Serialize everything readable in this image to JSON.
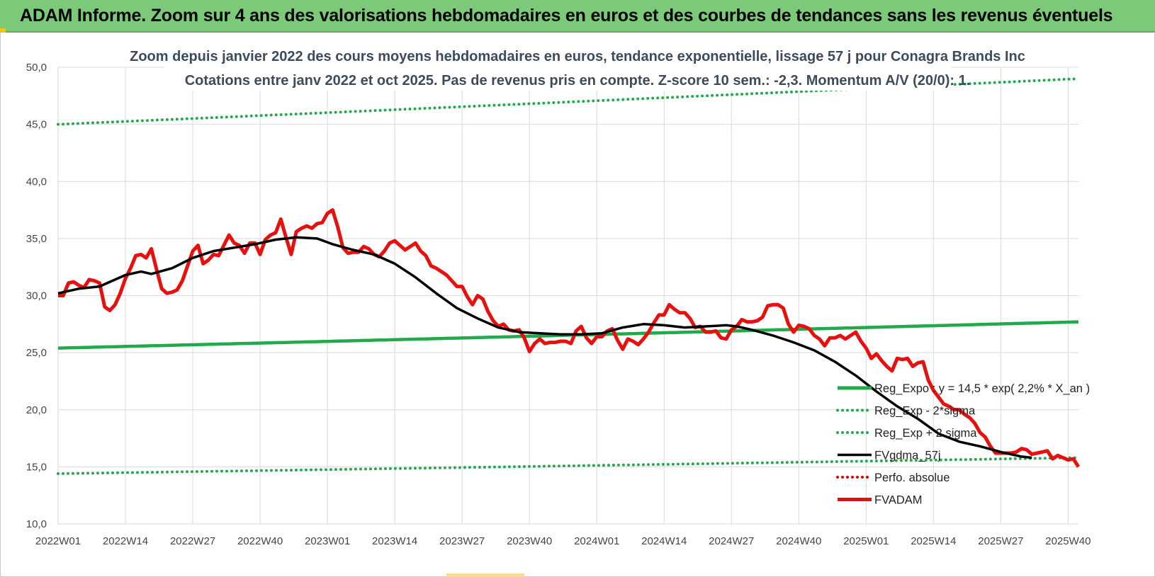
{
  "page": {
    "banner_title": "ADAM Informe. Zoom sur 4 ans des valorisations hebdomadaires en euros et des courbes de tendances sans les revenus éventuels"
  },
  "colors": {
    "banner": "#7dc97a",
    "reg_expo": "#22a94b",
    "sigma": "#22a94b",
    "fvgdma": "#000000",
    "perfo": "#e00000",
    "fvadam": "#e8100e",
    "grid": "#d9d9d9"
  },
  "chart_data": {
    "type": "line",
    "title_line1": "Zoom depuis janvier 2022 des cours moyens hebdomadaires en euros, tendance exponentielle, lissage 57 j pour Conagra Brands Inc",
    "title_line2": "Cotations entre janv 2022 et oct 2025. Pas de revenus pris en compte. Z-score 10 sem.: -2,3. Momentum A/V (20/0): 1.",
    "ylim": [
      10,
      50
    ],
    "y_ticks": [
      "10,0",
      "15,0",
      "20,0",
      "25,0",
      "30,0",
      "35,0",
      "40,0",
      "45,0",
      "50,0"
    ],
    "x_ticks": [
      "2022W01",
      "2022W14",
      "2022W27",
      "2022W40",
      "2023W01",
      "2023W14",
      "2023W27",
      "2023W40",
      "2024W01",
      "2024W14",
      "2024W27",
      "2024W40",
      "2025W01",
      "2025W14",
      "2025W27",
      "2025W40"
    ],
    "grid": true,
    "legend_position": "bottom-right",
    "legend": [
      {
        "label": "Reg_Expo : y = 14,5 * exp( 2,2% * X_an )",
        "style": "solid",
        "color": "#22a94b"
      },
      {
        "label": "Reg_Exp - 2*sigma",
        "style": "dotted",
        "color": "#22a94b"
      },
      {
        "label": "Reg_Exp + 2 sigma",
        "style": "dotted",
        "color": "#22a94b"
      },
      {
        "label": "FVgdma_57j",
        "style": "solid",
        "color": "#000000"
      },
      {
        "label": "Perfo. absolue",
        "style": "dotted",
        "color": "#e00000"
      },
      {
        "label": "FVADAM",
        "style": "solid",
        "color": "#e8100e"
      }
    ],
    "series": [
      {
        "name": "Reg_Expo : y = 14,5 * exp( 2,2% * X_an )",
        "start": 25.4,
        "end": 27.7
      },
      {
        "name": "Reg_Exp - 2*sigma",
        "start": 14.4,
        "end": 15.8
      },
      {
        "name": "Reg_Exp + 2 sigma",
        "start": 45.0,
        "end": 49.0
      },
      {
        "name": "FVgdma_57j",
        "points": [
          [
            0,
            30.2
          ],
          [
            4,
            30.6
          ],
          [
            8,
            30.8
          ],
          [
            10,
            31.2
          ],
          [
            13,
            31.8
          ],
          [
            16,
            32.1
          ],
          [
            18,
            31.9
          ],
          [
            22,
            32.4
          ],
          [
            26,
            33.3
          ],
          [
            30,
            33.9
          ],
          [
            34,
            34.2
          ],
          [
            38,
            34.5
          ],
          [
            42,
            34.9
          ],
          [
            46,
            35.1
          ],
          [
            50,
            35.0
          ],
          [
            53,
            34.5
          ],
          [
            57,
            34.0
          ],
          [
            61,
            33.6
          ],
          [
            65,
            32.8
          ],
          [
            69,
            31.6
          ],
          [
            73,
            30.2
          ],
          [
            77,
            28.9
          ],
          [
            81,
            28.0
          ],
          [
            85,
            27.2
          ],
          [
            89,
            26.8
          ],
          [
            93,
            26.7
          ],
          [
            97,
            26.6
          ],
          [
            101,
            26.6
          ],
          [
            105,
            26.7
          ],
          [
            109,
            27.2
          ],
          [
            113,
            27.5
          ],
          [
            117,
            27.4
          ],
          [
            121,
            27.2
          ],
          [
            125,
            27.3
          ],
          [
            129,
            27.4
          ],
          [
            131,
            27.3
          ],
          [
            134,
            27.0
          ],
          [
            138,
            26.5
          ],
          [
            142,
            25.9
          ],
          [
            146,
            25.2
          ],
          [
            150,
            24.2
          ],
          [
            154,
            23.0
          ],
          [
            158,
            21.6
          ],
          [
            162,
            20.3
          ],
          [
            166,
            19.2
          ],
          [
            170,
            17.9
          ],
          [
            174,
            17.2
          ],
          [
            178,
            16.8
          ],
          [
            182,
            16.3
          ],
          [
            186,
            15.9
          ],
          [
            188,
            15.8
          ]
        ]
      },
      {
        "name": "FVADAM",
        "points": [
          [
            0,
            30.0
          ],
          [
            1,
            30.0
          ],
          [
            2,
            31.1
          ],
          [
            3,
            31.2
          ],
          [
            4,
            30.9
          ],
          [
            5,
            30.7
          ],
          [
            6,
            31.4
          ],
          [
            7,
            31.3
          ],
          [
            8,
            31.1
          ],
          [
            9,
            29.0
          ],
          [
            10,
            28.7
          ],
          [
            11,
            29.2
          ],
          [
            12,
            30.2
          ],
          [
            13,
            31.5
          ],
          [
            14,
            32.4
          ],
          [
            15,
            33.5
          ],
          [
            16,
            33.6
          ],
          [
            17,
            33.3
          ],
          [
            18,
            34.1
          ],
          [
            19,
            32.3
          ],
          [
            20,
            30.6
          ],
          [
            21,
            30.2
          ],
          [
            22,
            30.3
          ],
          [
            23,
            30.5
          ],
          [
            24,
            31.3
          ],
          [
            25,
            32.6
          ],
          [
            26,
            33.9
          ],
          [
            27,
            34.4
          ],
          [
            28,
            32.8
          ],
          [
            29,
            33.1
          ],
          [
            30,
            33.6
          ],
          [
            31,
            33.5
          ],
          [
            32,
            34.4
          ],
          [
            33,
            35.3
          ],
          [
            34,
            34.6
          ],
          [
            35,
            34.4
          ],
          [
            36,
            33.7
          ],
          [
            37,
            34.6
          ],
          [
            38,
            34.6
          ],
          [
            39,
            33.6
          ],
          [
            40,
            34.9
          ],
          [
            41,
            35.3
          ],
          [
            42,
            35.5
          ],
          [
            43,
            36.7
          ],
          [
            44,
            35.1
          ],
          [
            45,
            33.6
          ],
          [
            46,
            35.6
          ],
          [
            47,
            35.9
          ],
          [
            48,
            36.1
          ],
          [
            49,
            35.9
          ],
          [
            50,
            36.3
          ],
          [
            51,
            36.4
          ],
          [
            52,
            37.2
          ],
          [
            53,
            37.5
          ],
          [
            54,
            36.0
          ],
          [
            55,
            34.2
          ],
          [
            56,
            33.7
          ],
          [
            57,
            33.8
          ],
          [
            58,
            33.8
          ],
          [
            59,
            34.3
          ],
          [
            60,
            34.1
          ],
          [
            61,
            33.6
          ],
          [
            62,
            33.4
          ],
          [
            63,
            33.9
          ],
          [
            64,
            34.6
          ],
          [
            65,
            34.8
          ],
          [
            66,
            34.4
          ],
          [
            67,
            34.0
          ],
          [
            68,
            34.3
          ],
          [
            69,
            34.6
          ],
          [
            70,
            33.9
          ],
          [
            71,
            33.5
          ],
          [
            72,
            32.6
          ],
          [
            73,
            32.4
          ],
          [
            74,
            32.1
          ],
          [
            75,
            31.8
          ],
          [
            76,
            31.3
          ],
          [
            77,
            30.8
          ],
          [
            78,
            30.8
          ],
          [
            79,
            29.9
          ],
          [
            80,
            29.2
          ],
          [
            81,
            30.0
          ],
          [
            82,
            29.7
          ],
          [
            83,
            28.6
          ],
          [
            84,
            27.8
          ],
          [
            85,
            27.3
          ],
          [
            86,
            27.5
          ],
          [
            87,
            27.0
          ],
          [
            88,
            26.9
          ],
          [
            89,
            27.0
          ],
          [
            90,
            26.3
          ],
          [
            91,
            25.1
          ],
          [
            92,
            25.8
          ],
          [
            93,
            26.2
          ],
          [
            94,
            25.8
          ],
          [
            95,
            25.9
          ],
          [
            96,
            25.9
          ],
          [
            97,
            26.0
          ],
          [
            98,
            26.0
          ],
          [
            99,
            25.8
          ],
          [
            100,
            26.9
          ],
          [
            101,
            27.3
          ],
          [
            102,
            26.3
          ],
          [
            103,
            25.8
          ],
          [
            104,
            26.4
          ],
          [
            105,
            26.4
          ],
          [
            106,
            26.9
          ],
          [
            107,
            27.1
          ],
          [
            108,
            26.1
          ],
          [
            109,
            25.3
          ],
          [
            110,
            26.2
          ],
          [
            111,
            26.0
          ],
          [
            112,
            25.7
          ],
          [
            113,
            26.2
          ],
          [
            114,
            26.8
          ],
          [
            115,
            27.6
          ],
          [
            116,
            28.3
          ],
          [
            117,
            28.3
          ],
          [
            118,
            29.2
          ],
          [
            119,
            28.8
          ],
          [
            120,
            28.5
          ],
          [
            121,
            28.5
          ],
          [
            122,
            28.0
          ],
          [
            123,
            27.2
          ],
          [
            124,
            27.3
          ],
          [
            125,
            26.8
          ],
          [
            126,
            26.8
          ],
          [
            127,
            26.9
          ],
          [
            128,
            26.3
          ],
          [
            129,
            26.2
          ],
          [
            130,
            27.0
          ],
          [
            131,
            27.3
          ],
          [
            132,
            27.9
          ],
          [
            133,
            27.7
          ],
          [
            134,
            27.7
          ],
          [
            135,
            27.8
          ],
          [
            136,
            28.1
          ],
          [
            137,
            29.1
          ],
          [
            138,
            29.2
          ],
          [
            139,
            29.2
          ],
          [
            140,
            28.9
          ],
          [
            141,
            27.5
          ],
          [
            142,
            26.8
          ],
          [
            143,
            27.4
          ],
          [
            144,
            27.3
          ],
          [
            145,
            27.1
          ],
          [
            146,
            26.5
          ],
          [
            147,
            26.2
          ],
          [
            148,
            25.6
          ],
          [
            149,
            26.3
          ],
          [
            150,
            26.3
          ],
          [
            151,
            26.5
          ],
          [
            152,
            26.2
          ],
          [
            153,
            26.5
          ],
          [
            154,
            26.8
          ],
          [
            155,
            26.0
          ],
          [
            156,
            25.4
          ],
          [
            157,
            24.5
          ],
          [
            158,
            24.9
          ],
          [
            159,
            24.3
          ],
          [
            160,
            23.8
          ],
          [
            161,
            23.4
          ],
          [
            162,
            24.5
          ],
          [
            163,
            24.4
          ],
          [
            164,
            24.5
          ],
          [
            165,
            23.8
          ],
          [
            166,
            24.1
          ],
          [
            167,
            24.2
          ],
          [
            168,
            22.6
          ],
          [
            169,
            21.7
          ],
          [
            170,
            21.1
          ],
          [
            171,
            20.5
          ],
          [
            172,
            20.3
          ],
          [
            173,
            20.0
          ],
          [
            174,
            20.0
          ],
          [
            175,
            19.6
          ],
          [
            176,
            19.3
          ],
          [
            177,
            18.8
          ],
          [
            178,
            18.0
          ],
          [
            179,
            17.6
          ],
          [
            180,
            16.8
          ],
          [
            181,
            16.2
          ],
          [
            182,
            16.2
          ],
          [
            183,
            16.2
          ],
          [
            184,
            16.2
          ],
          [
            185,
            16.3
          ],
          [
            186,
            16.6
          ],
          [
            187,
            16.5
          ],
          [
            188,
            16.1
          ],
          [
            189,
            16.2
          ],
          [
            190,
            16.3
          ],
          [
            191,
            16.4
          ],
          [
            192,
            15.7
          ],
          [
            193,
            16.0
          ],
          [
            194,
            15.8
          ],
          [
            195,
            15.6
          ],
          [
            196,
            15.7
          ],
          [
            197,
            15.0
          ]
        ]
      }
    ]
  }
}
